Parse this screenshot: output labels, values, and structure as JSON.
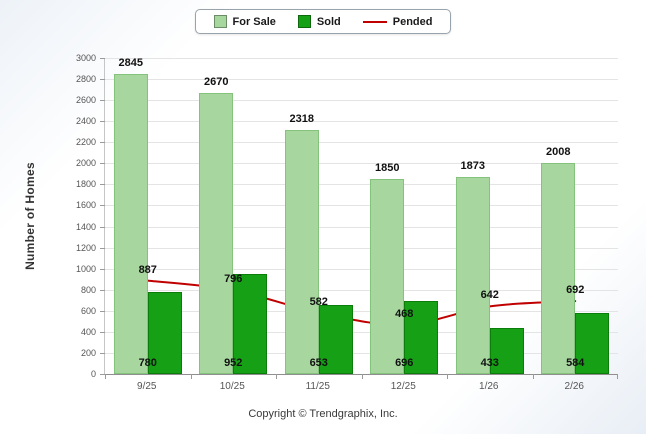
{
  "chart_data": {
    "type": "bar",
    "categories": [
      "9/25",
      "10/25",
      "11/25",
      "12/25",
      "1/26",
      "2/26"
    ],
    "series": [
      {
        "name": "For Sale",
        "type": "bar",
        "color": "#a7d79f",
        "values": [
          2845,
          2670,
          2318,
          1850,
          1873,
          2008
        ]
      },
      {
        "name": "Sold",
        "type": "bar",
        "color": "#16a016",
        "values": [
          780,
          952,
          653,
          696,
          433,
          584
        ]
      },
      {
        "name": "Pended",
        "type": "line",
        "color": "#c00000",
        "values": [
          887,
          796,
          582,
          468,
          642,
          692
        ]
      }
    ],
    "title": "",
    "xlabel": "",
    "ylabel": "Number of Homes",
    "ylim": [
      0,
      3000
    ],
    "ytick_step": 200,
    "grid": true,
    "legend_position": "top"
  },
  "footer": {
    "copyright": "Copyright © Trendgraphix, Inc."
  }
}
